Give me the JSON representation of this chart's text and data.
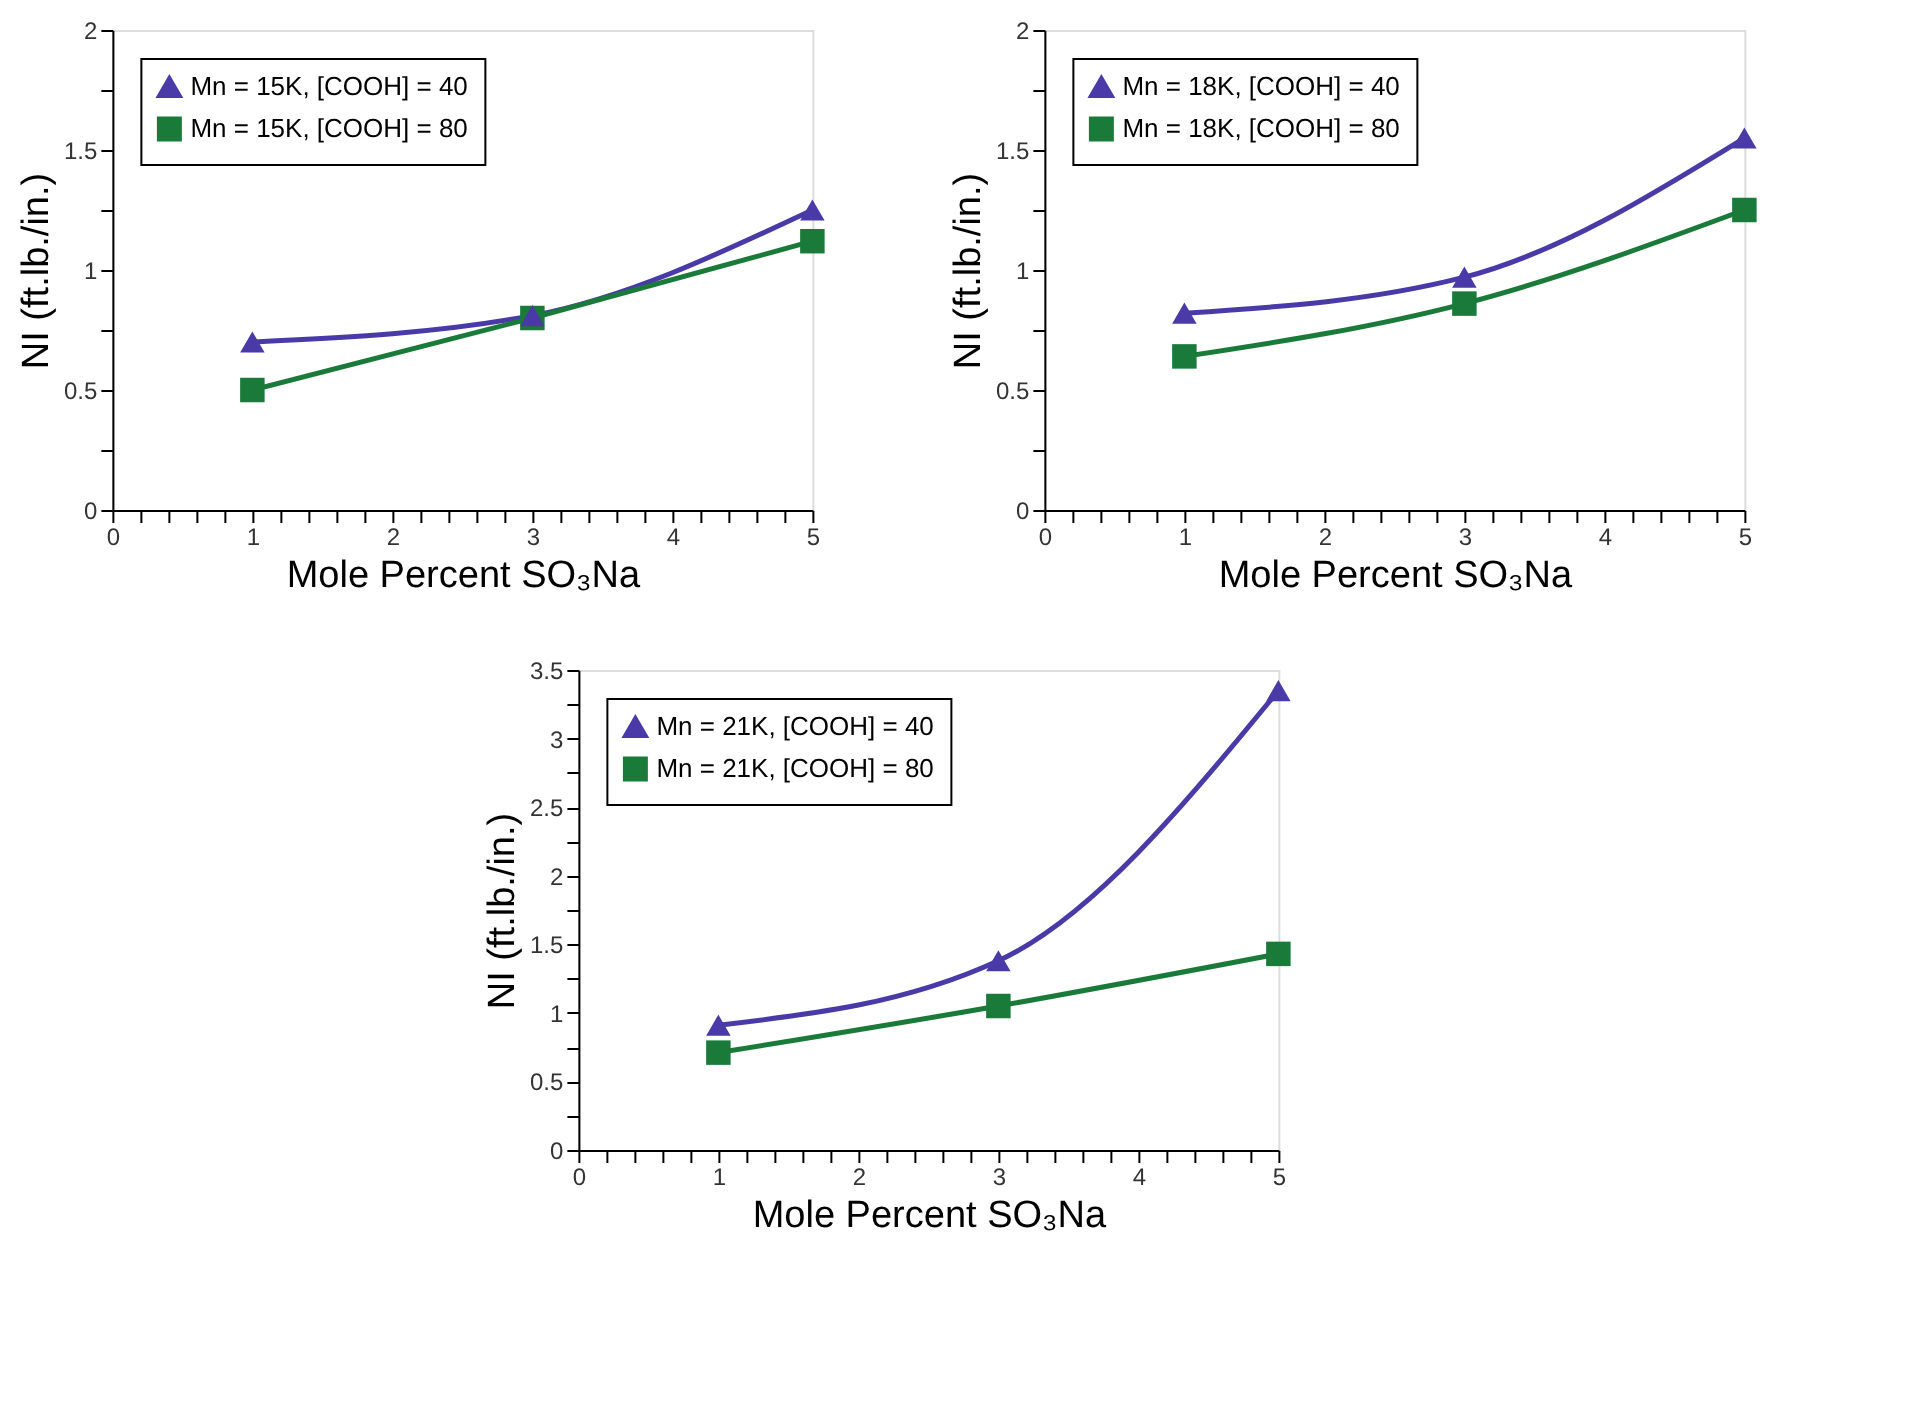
{
  "chart_data": [
    {
      "type": "line",
      "xlabel": "Mole Percent SO₃Na",
      "ylabel": "NI (ft.lb./in.)",
      "x": [
        1,
        3,
        5
      ],
      "xlim": [
        0,
        5
      ],
      "xticks": [
        0,
        {
          "value": 0.2,
          "label": null
        },
        {
          "value": 0.4,
          "label": null
        },
        {
          "value": 0.6,
          "label": null
        },
        {
          "value": 0.8,
          "label": null
        },
        1,
        {
          "value": 1.2,
          "label": null
        },
        {
          "value": 1.4,
          "label": null
        },
        {
          "value": 1.6,
          "label": null
        },
        {
          "value": 1.8,
          "label": null
        },
        2,
        {
          "value": 2.2,
          "label": null
        },
        {
          "value": 2.4,
          "label": null
        },
        {
          "value": 2.6,
          "label": null
        },
        {
          "value": 2.8,
          "label": null
        },
        3,
        {
          "value": 3.2,
          "label": null
        },
        {
          "value": 3.4,
          "label": null
        },
        {
          "value": 3.6,
          "label": null
        },
        {
          "value": 3.8,
          "label": null
        },
        4,
        {
          "value": 4.2,
          "label": null
        },
        {
          "value": 4.4,
          "label": null
        },
        {
          "value": 4.6,
          "label": null
        },
        {
          "value": 4.8,
          "label": null
        },
        5
      ],
      "ylim": [
        0,
        2
      ],
      "yticks": [
        0,
        {
          "value": 0.25,
          "label": null
        },
        0.5,
        {
          "value": 0.75,
          "label": null
        },
        1,
        {
          "value": 1.25,
          "label": null
        },
        1.5,
        {
          "value": 1.75,
          "label": null
        },
        2
      ],
      "grid": false,
      "legend": "top left",
      "line_style": "solid",
      "series": [
        {
          "name": "Mn = 15K, [COOH] = 40",
          "color": "#4a3aa8",
          "marker": "triangle",
          "values": [
            0.7,
            0.81,
            1.25
          ]
        },
        {
          "name": "Mn = 15K, [COOH] = 80",
          "color": "#1a7a3a",
          "marker": "square",
          "values": [
            0.5,
            0.8,
            1.12
          ]
        }
      ]
    },
    {
      "type": "line",
      "xlabel": "Mole Percent SO₃Na",
      "ylabel": "NI (ft.lb./in.)",
      "x": [
        1,
        3,
        5
      ],
      "xlim": [
        0,
        5
      ],
      "xticks": [
        0,
        {
          "value": 0.2,
          "label": null
        },
        {
          "value": 0.4,
          "label": null
        },
        {
          "value": 0.6,
          "label": null
        },
        {
          "value": 0.8,
          "label": null
        },
        1,
        {
          "value": 1.2,
          "label": null
        },
        {
          "value": 1.4,
          "label": null
        },
        {
          "value": 1.6,
          "label": null
        },
        {
          "value": 1.8,
          "label": null
        },
        2,
        {
          "value": 2.2,
          "label": null
        },
        {
          "value": 2.4,
          "label": null
        },
        {
          "value": 2.6,
          "label": null
        },
        {
          "value": 2.8,
          "label": null
        },
        3,
        {
          "value": 3.2,
          "label": null
        },
        {
          "value": 3.4,
          "label": null
        },
        {
          "value": 3.6,
          "label": null
        },
        {
          "value": 3.8,
          "label": null
        },
        4,
        {
          "value": 4.2,
          "label": null
        },
        {
          "value": 4.4,
          "label": null
        },
        {
          "value": 4.6,
          "label": null
        },
        {
          "value": 4.8,
          "label": null
        },
        5
      ],
      "ylim": [
        0,
        2
      ],
      "yticks": [
        0,
        {
          "value": 0.25,
          "label": null
        },
        0.5,
        {
          "value": 0.75,
          "label": null
        },
        1,
        {
          "value": 1.25,
          "label": null
        },
        1.5,
        {
          "value": 1.75,
          "label": null
        },
        2
      ],
      "grid": false,
      "legend": "top left",
      "line_style": "solid",
      "series": [
        {
          "name": "Mn = 18K, [COOH] = 40",
          "color": "#4a3aa8",
          "marker": "triangle",
          "values": [
            0.82,
            0.97,
            1.55
          ]
        },
        {
          "name": "Mn = 18K, [COOH] = 80",
          "color": "#1a7a3a",
          "marker": "square",
          "values": [
            0.64,
            0.86,
            1.25
          ]
        }
      ]
    },
    {
      "type": "line",
      "xlabel": "Mole Percent SO₃Na",
      "ylabel": "NI (ft.lb./in.)",
      "x": [
        1,
        3,
        5
      ],
      "xlim": [
        0,
        5
      ],
      "xticks": [
        0,
        {
          "value": 0.2,
          "label": null
        },
        {
          "value": 0.4,
          "label": null
        },
        {
          "value": 0.6,
          "label": null
        },
        {
          "value": 0.8,
          "label": null
        },
        1,
        {
          "value": 1.2,
          "label": null
        },
        {
          "value": 1.4,
          "label": null
        },
        {
          "value": 1.6,
          "label": null
        },
        {
          "value": 1.8,
          "label": null
        },
        2,
        {
          "value": 2.2,
          "label": null
        },
        {
          "value": 2.4,
          "label": null
        },
        {
          "value": 2.6,
          "label": null
        },
        {
          "value": 2.8,
          "label": null
        },
        3,
        {
          "value": 3.2,
          "label": null
        },
        {
          "value": 3.4,
          "label": null
        },
        {
          "value": 3.6,
          "label": null
        },
        {
          "value": 3.8,
          "label": null
        },
        4,
        {
          "value": 4.2,
          "label": null
        },
        {
          "value": 4.4,
          "label": null
        },
        {
          "value": 4.6,
          "label": null
        },
        {
          "value": 4.8,
          "label": null
        },
        5
      ],
      "ylim": [
        0,
        3.5
      ],
      "yticks": [
        0,
        {
          "value": 0.25,
          "label": null
        },
        0.5,
        {
          "value": 0.75,
          "label": null
        },
        1,
        {
          "value": 1.25,
          "label": null
        },
        1.5,
        {
          "value": 1.75,
          "label": null
        },
        2,
        {
          "value": 2.25,
          "label": null
        },
        2.5,
        {
          "value": 2.75,
          "label": null
        },
        3,
        {
          "value": 3.25,
          "label": null
        },
        3.5
      ],
      "grid": false,
      "legend": "top left",
      "line_style": "solid",
      "series": [
        {
          "name": "Mn = 21K, [COOH] = 40",
          "color": "#4a3aa8",
          "marker": "triangle",
          "values": [
            0.91,
            1.38,
            3.35
          ]
        },
        {
          "name": "Mn = 21K, [COOH] = 80",
          "color": "#1a7a3a",
          "marker": "square",
          "values": [
            0.71,
            1.05,
            1.43
          ]
        }
      ]
    }
  ]
}
